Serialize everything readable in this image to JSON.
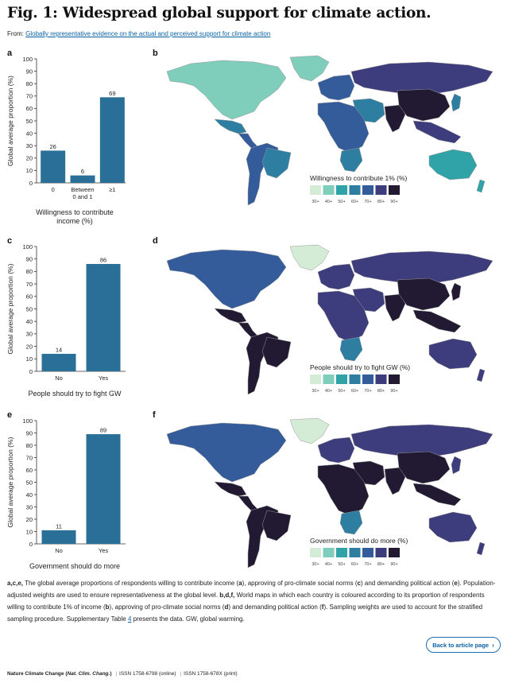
{
  "title": "Fig. 1: Widespread global support for climate action.",
  "from": {
    "prefix": "From:",
    "link": "Globally representative evidence on the actual and perceived support for climate action"
  },
  "colors": {
    "bar": "#2a6f97",
    "link": "#0b62a4",
    "scale": [
      "#d4ecd6",
      "#7fcdbb",
      "#2fa3a7",
      "#2d7ea1",
      "#355c9a",
      "#3d3c7c",
      "#221a32"
    ],
    "land_base": "#ffffff",
    "land_stroke": "#999999"
  },
  "panels": [
    {
      "letter": "a"
    },
    {
      "letter": "b"
    },
    {
      "letter": "c"
    },
    {
      "letter": "d"
    },
    {
      "letter": "e"
    },
    {
      "letter": "f"
    }
  ],
  "chart_data": [
    {
      "type": "bar",
      "categories": [
        "0",
        "Between\n0 and 1",
        "≥1"
      ],
      "values": [
        26,
        6,
        69
      ],
      "xlabel": "Willingness to contribute\nincome (%)",
      "ylabel": "Global average proportion (%)",
      "ylim": [
        0,
        100
      ],
      "yticks": [
        0,
        10,
        20,
        30,
        40,
        50,
        60,
        70,
        80,
        90,
        100
      ]
    },
    {
      "type": "bar",
      "categories": [
        "No",
        "Yes"
      ],
      "values": [
        14,
        86
      ],
      "xlabel": "People should try to fight GW",
      "ylabel": "Global average proportion (%)",
      "ylim": [
        0,
        100
      ],
      "yticks": [
        0,
        10,
        20,
        30,
        40,
        50,
        60,
        70,
        80,
        90,
        100
      ]
    },
    {
      "type": "bar",
      "categories": [
        "No",
        "Yes"
      ],
      "values": [
        11,
        89
      ],
      "xlabel": "Government should do more",
      "ylabel": "Global average proportion (%)",
      "ylim": [
        0,
        100
      ],
      "yticks": [
        0,
        10,
        20,
        30,
        40,
        50,
        60,
        70,
        80,
        90,
        100
      ]
    }
  ],
  "maps": [
    {
      "legend_title": "Willingness to contribute 1% (%)",
      "legend_labels": [
        "30+",
        "40+",
        "50+",
        "60+",
        "70+",
        "80+",
        "90+"
      ],
      "regions": {
        "na": 1,
        "greenland": 1,
        "mexico": 3,
        "ca": 4,
        "sa": 4,
        "brazil": 3,
        "europe": 4,
        "russia": 5,
        "mideast": 3,
        "africa": 4,
        "saf": 3,
        "india": 6,
        "china": 6,
        "seasia": 5,
        "japan": 3,
        "australia": 2,
        "nz": 2
      }
    },
    {
      "legend_title": "People should try to fight GW (%)",
      "legend_labels": [
        "30+",
        "40+",
        "50+",
        "60+",
        "70+",
        "80+",
        "90+"
      ],
      "regions": {
        "na": 4,
        "greenland": 0,
        "mexico": 6,
        "ca": 6,
        "sa": 6,
        "brazil": 6,
        "europe": 5,
        "russia": 5,
        "mideast": 5,
        "africa": 5,
        "saf": 3,
        "india": 6,
        "china": 6,
        "seasia": 6,
        "japan": 6,
        "australia": 5,
        "nz": 5
      }
    },
    {
      "legend_title": "Government should do more (%)",
      "legend_labels": [
        "30+",
        "40+",
        "50+",
        "60+",
        "70+",
        "80+",
        "90+"
      ],
      "regions": {
        "na": 4,
        "greenland": 0,
        "mexico": 6,
        "ca": 6,
        "sa": 6,
        "brazil": 6,
        "europe": 5,
        "russia": 5,
        "mideast": 6,
        "africa": 6,
        "saf": 3,
        "india": 6,
        "china": 6,
        "seasia": 6,
        "japan": 5,
        "australia": 5,
        "nz": 5
      }
    }
  ],
  "caption": {
    "letters_ace": "a,c,e,",
    "part1": " The global average proportions of respondents willing to contribute income (",
    "a": "a",
    "part2": "), approving of pro-climate social norms (",
    "c": "c",
    "part3": ") and demanding political action (",
    "e": "e",
    "part4": "). Population-adjusted weights are used to ensure representativeness at the global level. ",
    "letters_bdf": "b,d,f,",
    "part5": " World maps in which each country is coloured according to its proportion of respondents willing to contribute 1% of income (",
    "b": "b",
    "part6": "), approving of pro-climate social norms (",
    "d": "d",
    "part7": ") and demanding political action (",
    "f": "f",
    "part8": "). Sampling weights are used to account for the stratified sampling procedure. Supplementary Table ",
    "table_link": "4",
    "part9": " presents the data. GW, global warming."
  },
  "back_button": {
    "label": "Back to article page",
    "icon": "chevron-right-icon"
  },
  "footer": {
    "journal": "Nature Climate Change",
    "abbrev": "Nat. Clim. Chang.",
    "issn_online": "ISSN 1758-6798 (online)",
    "issn_print": "ISSN 1758-678X (print)"
  }
}
